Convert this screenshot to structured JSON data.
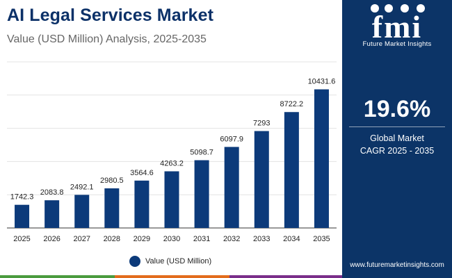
{
  "header": {
    "title": "AI Legal Services Market",
    "subtitle": "Value (USD Million) Analysis, 2025-2035"
  },
  "chart_data": {
    "type": "bar",
    "title": "AI Legal Services Market",
    "subtitle": "Value (USD Million) Analysis, 2025-2035",
    "categories": [
      "2025",
      "2026",
      "2027",
      "2028",
      "2029",
      "2030",
      "2031",
      "2032",
      "2033",
      "2034",
      "2035"
    ],
    "values": [
      1742.3,
      2083.8,
      2492.1,
      2980.5,
      3564.6,
      4263.2,
      5098.7,
      6097.9,
      7293,
      8722.2,
      10431.6
    ],
    "value_labels": [
      "1742.3",
      "2083.8",
      "2492.1",
      "2980.5",
      "3564.6",
      "4263.2",
      "5098.7",
      "6097.9",
      "7293",
      "8722.2",
      "10431.6"
    ],
    "series_name": "Value (USD Million)",
    "xlabel": "",
    "ylabel": "",
    "ylim": [
      0,
      12500
    ],
    "grid": true,
    "legend_position": "bottom-center",
    "bar_color": "#0c3a7a"
  },
  "legend": {
    "label": "Value (USD Million)"
  },
  "sidebar": {
    "logo_text": "Future Market Insights",
    "cagr_value": "19.6%",
    "cagr_label_line1": "Global Market",
    "cagr_label_line2": "CAGR 2025 - 2035",
    "website": "www.futuremarketinsights.com"
  },
  "colors": {
    "brand_navy": "#0c3467",
    "title": "#0c3168",
    "bar": "#0c3a7a",
    "footer_segments": [
      "#4a9b3e",
      "#e36c1c",
      "#7a2e8a",
      "#0c3467"
    ]
  }
}
